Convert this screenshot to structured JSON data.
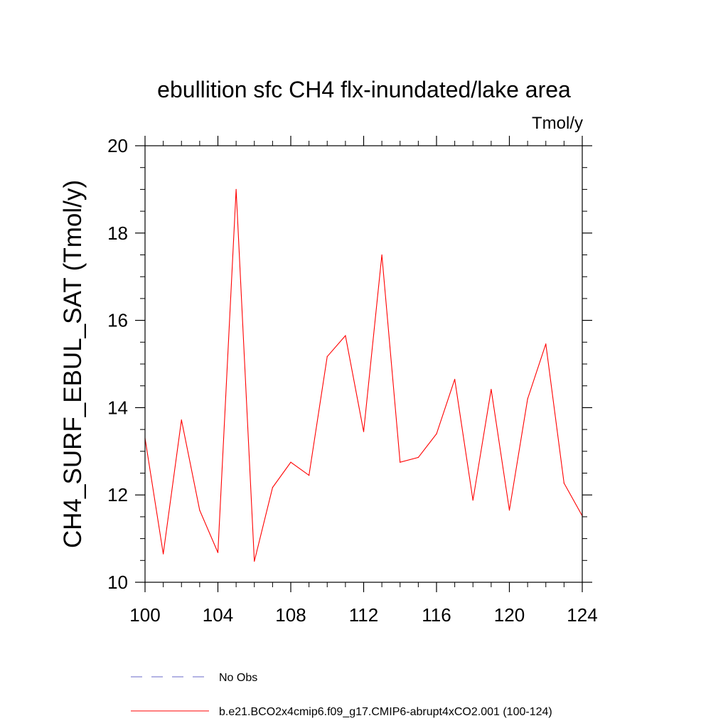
{
  "chart_data": {
    "type": "line",
    "title": "ebullition sfc CH4 flx-inundated/lake area",
    "units": "Tmol/y",
    "xlabel": "",
    "ylabel": "CH4_SURF_EBUL_SAT  (Tmol/y)",
    "xlim": [
      100,
      124
    ],
    "ylim": [
      10,
      20
    ],
    "xticks": [
      "100",
      "104",
      "108",
      "112",
      "116",
      "120",
      "124"
    ],
    "yticks": [
      "10",
      "12",
      "14",
      "16",
      "18",
      "20"
    ],
    "grid": false,
    "series": [
      {
        "name": "b.e21.BCO2x4cmip6.f09_g17.CMIP6-abrupt4xCO2.001 (100-124)",
        "color": "#ff0000",
        "x": [
          100,
          101,
          102,
          103,
          104,
          105,
          106,
          107,
          108,
          109,
          110,
          111,
          112,
          113,
          114,
          115,
          116,
          117,
          118,
          119,
          120,
          121,
          122,
          123,
          124
        ],
        "values": [
          13.3,
          10.65,
          13.72,
          11.65,
          10.68,
          19.0,
          10.48,
          12.17,
          12.75,
          12.45,
          15.17,
          15.65,
          13.45,
          17.5,
          12.75,
          12.86,
          13.4,
          14.65,
          11.88,
          14.42,
          11.65,
          14.2,
          15.46,
          12.27,
          11.52
        ]
      }
    ],
    "legend": [
      {
        "label": "No Obs",
        "style": "dashed",
        "color": "#6a6ac8"
      },
      {
        "label": "b.e21.BCO2x4cmip6.f09_g17.CMIP6-abrupt4xCO2.001 (100-124)",
        "style": "solid",
        "color": "#ff0000"
      }
    ],
    "legend_position": "bottom"
  }
}
